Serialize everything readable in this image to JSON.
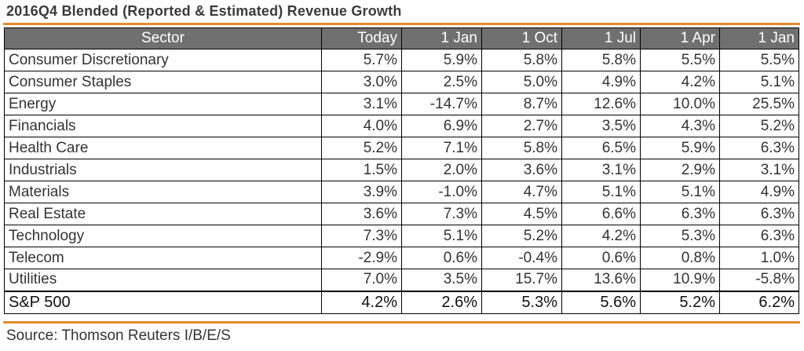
{
  "title": "2016Q4 Blended (Reported & Estimated) Revenue Growth",
  "columns": [
    "Sector",
    "Today",
    "1 Jan",
    "1 Oct",
    "1 Jul",
    "1 Apr",
    "1 Jan"
  ],
  "rows": [
    {
      "sector": "Consumer Discretionary",
      "values": [
        "5.7%",
        "5.9%",
        "5.8%",
        "5.8%",
        "5.5%",
        "5.5%"
      ]
    },
    {
      "sector": "Consumer Staples",
      "values": [
        "3.0%",
        "2.5%",
        "5.0%",
        "4.9%",
        "4.2%",
        "5.1%"
      ]
    },
    {
      "sector": "Energy",
      "values": [
        "3.1%",
        "-14.7%",
        "8.7%",
        "12.6%",
        "10.0%",
        "25.5%"
      ]
    },
    {
      "sector": "Financials",
      "values": [
        "4.0%",
        "6.9%",
        "2.7%",
        "3.5%",
        "4.3%",
        "5.2%"
      ]
    },
    {
      "sector": "Health Care",
      "values": [
        "5.2%",
        "7.1%",
        "5.8%",
        "6.5%",
        "5.9%",
        "6.3%"
      ]
    },
    {
      "sector": "Industrials",
      "values": [
        "1.5%",
        "2.0%",
        "3.6%",
        "3.1%",
        "2.9%",
        "3.1%"
      ]
    },
    {
      "sector": "Materials",
      "values": [
        "3.9%",
        "-1.0%",
        "4.7%",
        "5.1%",
        "5.1%",
        "4.9%"
      ]
    },
    {
      "sector": "Real Estate",
      "values": [
        "3.6%",
        "7.3%",
        "4.5%",
        "6.6%",
        "6.3%",
        "6.3%"
      ]
    },
    {
      "sector": "Technology",
      "values": [
        "7.3%",
        "5.1%",
        "5.2%",
        "4.2%",
        "5.3%",
        "6.3%"
      ]
    },
    {
      "sector": "Telecom",
      "values": [
        "-2.9%",
        "0.6%",
        "-0.4%",
        "0.6%",
        "0.8%",
        "1.0%"
      ]
    },
    {
      "sector": "Utilities",
      "values": [
        "7.0%",
        "3.5%",
        "15.7%",
        "13.6%",
        "10.9%",
        "-5.8%"
      ]
    }
  ],
  "total": {
    "sector": "S&P 500",
    "values": [
      "4.2%",
      "2.6%",
      "5.3%",
      "5.6%",
      "5.2%",
      "6.2%"
    ]
  },
  "source": "Source: Thomson Reuters I/B/E/S",
  "colors": {
    "accent_rule": "#e48a2a",
    "header_bg": "#707070",
    "header_text": "#ffffff"
  }
}
